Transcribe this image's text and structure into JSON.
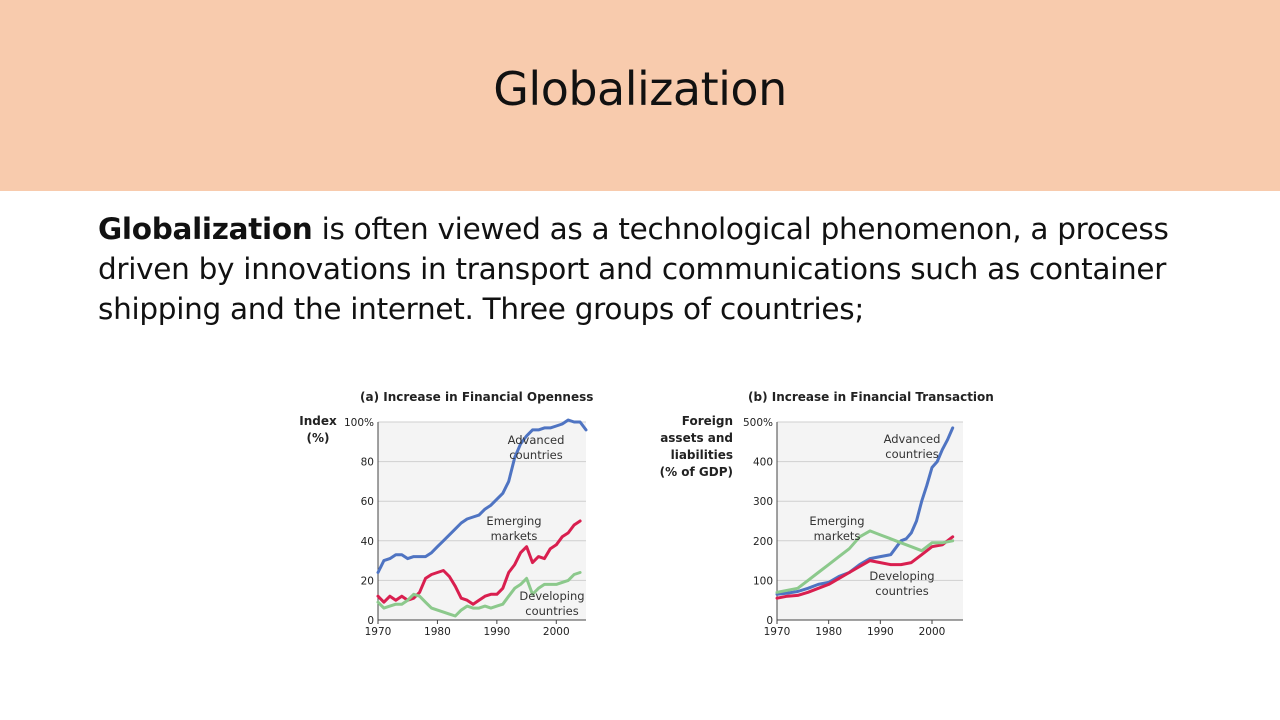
{
  "slide": {
    "title": "Globalization",
    "body_bold": "Globalization",
    "body_rest": " is often viewed as a technological phenomenon, a process driven by innovations in transport and communications such as container shipping and the internet. Three groups of countries;"
  },
  "chart_data": [
    {
      "type": "line",
      "title": "(a) Increase in Financial Openness",
      "ylabel": [
        "Index",
        "(%)"
      ],
      "ylim": [
        0,
        100
      ],
      "xlim": [
        1970,
        2005
      ],
      "yticks": [
        "0",
        "20",
        "40",
        "60",
        "80",
        "100%"
      ],
      "xticks": [
        "1970",
        "1980",
        "1990",
        "2000"
      ],
      "grid": true,
      "series": [
        {
          "name": "Advanced countries",
          "label_lines": [
            "Advanced",
            "countries"
          ],
          "color": "#4f74c2",
          "x": [
            1970,
            1971,
            1972,
            1973,
            1974,
            1975,
            1976,
            1977,
            1978,
            1979,
            1980,
            1981,
            1982,
            1983,
            1984,
            1985,
            1986,
            1987,
            1988,
            1989,
            1990,
            1991,
            1992,
            1993,
            1994,
            1995,
            1996,
            1997,
            1998,
            1999,
            2000,
            2001,
            2002,
            2003,
            2004,
            2005
          ],
          "values": [
            24,
            30,
            31,
            33,
            33,
            31,
            32,
            32,
            32,
            34,
            37,
            40,
            43,
            46,
            49,
            51,
            52,
            53,
            56,
            58,
            61,
            64,
            70,
            82,
            89,
            93,
            96,
            96,
            97,
            97,
            98,
            99,
            101,
            100,
            100,
            96
          ]
        },
        {
          "name": "Emerging markets",
          "label_lines": [
            "Emerging",
            "markets"
          ],
          "color": "#d91f4f",
          "x": [
            1970,
            1971,
            1972,
            1973,
            1974,
            1975,
            1976,
            1977,
            1978,
            1979,
            1980,
            1981,
            1982,
            1983,
            1984,
            1985,
            1986,
            1987,
            1988,
            1989,
            1990,
            1991,
            1992,
            1993,
            1994,
            1995,
            1996,
            1997,
            1998,
            1999,
            2000,
            2001,
            2002,
            2003,
            2004
          ],
          "values": [
            12,
            9,
            12,
            10,
            12,
            10,
            11,
            14,
            21,
            23,
            24,
            25,
            22,
            17,
            11,
            10,
            8,
            10,
            12,
            13,
            13,
            16,
            24,
            28,
            34,
            37,
            29,
            32,
            31,
            36,
            38,
            42,
            44,
            48,
            50
          ]
        },
        {
          "name": "Developing countries",
          "label_lines": [
            "Developing",
            "countries"
          ],
          "color": "#8cc98c",
          "x": [
            1970,
            1971,
            1972,
            1973,
            1974,
            1975,
            1976,
            1977,
            1978,
            1979,
            1980,
            1981,
            1982,
            1983,
            1984,
            1985,
            1986,
            1987,
            1988,
            1989,
            1990,
            1991,
            1992,
            1993,
            1994,
            1995,
            1996,
            1997,
            1998,
            1999,
            2000,
            2001,
            2002,
            2003,
            2004
          ],
          "values": [
            9,
            6,
            7,
            8,
            8,
            10,
            13,
            12,
            9,
            6,
            5,
            4,
            3,
            2,
            5,
            7,
            6,
            6,
            7,
            6,
            7,
            8,
            12,
            16,
            18,
            21,
            13,
            16,
            18,
            18,
            18,
            19,
            20,
            23,
            24
          ]
        }
      ]
    },
    {
      "type": "line",
      "title": "(b) Increase in Financial Transaction",
      "ylabel": [
        "Foreign",
        "assets and",
        "liabilities",
        "(% of GDP)"
      ],
      "ylim": [
        0,
        500
      ],
      "xlim": [
        1970,
        2006
      ],
      "yticks": [
        "0",
        "100",
        "200",
        "300",
        "400",
        "500%"
      ],
      "xticks": [
        "1970",
        "1980",
        "1990",
        "2000"
      ],
      "grid": true,
      "series": [
        {
          "name": "Advanced countries",
          "label_lines": [
            "Advanced",
            "countries"
          ],
          "color": "#4f74c2",
          "x": [
            1970,
            1972,
            1974,
            1976,
            1978,
            1980,
            1982,
            1984,
            1986,
            1988,
            1990,
            1992,
            1994,
            1995,
            1996,
            1997,
            1998,
            1999,
            2000,
            2001,
            2002,
            2003,
            2004
          ],
          "values": [
            65,
            68,
            72,
            80,
            90,
            95,
            110,
            120,
            140,
            155,
            160,
            165,
            200,
            205,
            220,
            250,
            300,
            340,
            385,
            400,
            430,
            455,
            485
          ]
        },
        {
          "name": "Emerging markets",
          "label_lines": [
            "Emerging",
            "markets"
          ],
          "color": "#d91f4f",
          "x": [
            1970,
            1972,
            1974,
            1976,
            1978,
            1980,
            1982,
            1984,
            1986,
            1988,
            1990,
            1992,
            1994,
            1996,
            1998,
            2000,
            2002,
            2004
          ],
          "values": [
            55,
            60,
            62,
            70,
            80,
            90,
            105,
            120,
            135,
            150,
            145,
            140,
            140,
            145,
            165,
            185,
            190,
            210
          ]
        },
        {
          "name": "Developing countries",
          "label_lines": [
            "Developing",
            "countries"
          ],
          "color": "#8cc98c",
          "x": [
            1970,
            1972,
            1974,
            1976,
            1978,
            1980,
            1982,
            1984,
            1986,
            1988,
            1990,
            1992,
            1994,
            1996,
            1998,
            2000,
            2002,
            2004
          ],
          "values": [
            70,
            75,
            80,
            100,
            120,
            140,
            160,
            180,
            210,
            225,
            215,
            205,
            195,
            185,
            175,
            195,
            195,
            200
          ]
        }
      ]
    }
  ]
}
